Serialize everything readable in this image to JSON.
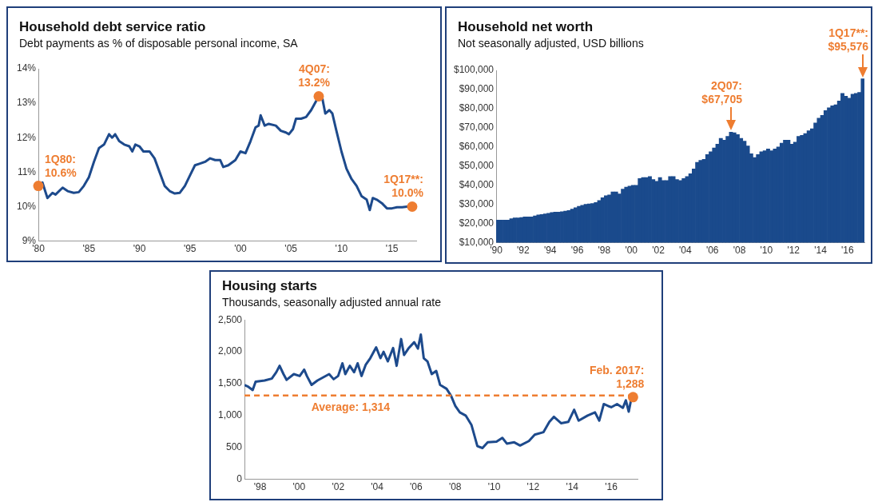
{
  "chart_data": [
    {
      "type": "line",
      "title": "Household debt service ratio",
      "subtitle": "Debt payments as % of disposable personal income, SA",
      "color": "#1d4a8c",
      "x": [
        1980.0,
        1980.4,
        1980.9,
        1981.4,
        1981.7,
        1982.4,
        1982.9,
        1983.5,
        1984.0,
        1984.5,
        1985.0,
        1985.5,
        1986.0,
        1986.5,
        1987.0,
        1987.3,
        1987.6,
        1988.0,
        1988.5,
        1989.0,
        1989.3,
        1989.6,
        1990.0,
        1990.4,
        1991.0,
        1991.5,
        1992.0,
        1992.5,
        1993.0,
        1993.5,
        1994.0,
        1994.5,
        1995.0,
        1995.5,
        1996.0,
        1996.5,
        1997.0,
        1997.5,
        1998.0,
        1998.3,
        1998.8,
        1999.5,
        2000.0,
        2000.5,
        2001.0,
        2001.5,
        2001.8,
        2002.0,
        2002.4,
        2002.8,
        2003.5,
        2004.0,
        2004.5,
        2004.8,
        2005.2,
        2005.5,
        2006.0,
        2006.5,
        2007.0,
        2007.75,
        2008.1,
        2008.4,
        2008.8,
        2009.1,
        2009.5,
        2010.0,
        2010.5,
        2011.0,
        2011.5,
        2012.0,
        2012.5,
        2012.8,
        2013.1,
        2013.5,
        2014.0,
        2014.5,
        2015.0,
        2015.5,
        2016.0,
        2016.5,
        2017.0
      ],
      "values": [
        10.6,
        10.7,
        10.25,
        10.4,
        10.35,
        10.55,
        10.45,
        10.4,
        10.42,
        10.6,
        10.85,
        11.3,
        11.7,
        11.8,
        12.1,
        12.0,
        12.1,
        11.9,
        11.8,
        11.75,
        11.6,
        11.8,
        11.75,
        11.6,
        11.6,
        11.4,
        11.0,
        10.6,
        10.45,
        10.38,
        10.4,
        10.6,
        10.9,
        11.2,
        11.25,
        11.3,
        11.4,
        11.35,
        11.35,
        11.15,
        11.2,
        11.35,
        11.6,
        11.55,
        11.9,
        12.3,
        12.35,
        12.65,
        12.35,
        12.4,
        12.35,
        12.2,
        12.15,
        12.1,
        12.25,
        12.55,
        12.55,
        12.6,
        12.8,
        13.2,
        13.15,
        12.7,
        12.8,
        12.7,
        12.2,
        11.6,
        11.1,
        10.8,
        10.6,
        10.3,
        10.2,
        9.9,
        10.25,
        10.2,
        10.1,
        9.95,
        9.95,
        9.98,
        9.98,
        10.0,
        10.0
      ],
      "xlim": [
        1980,
        2017.4
      ],
      "xticks": [
        {
          "value": 1980,
          "label": "'80"
        },
        {
          "value": 1985,
          "label": "'85"
        },
        {
          "value": 1990,
          "label": "'90"
        },
        {
          "value": 1995,
          "label": "'95"
        },
        {
          "value": 2000,
          "label": "'00"
        },
        {
          "value": 2005,
          "label": "'05"
        },
        {
          "value": 2010,
          "label": "'10"
        },
        {
          "value": 2015,
          "label": "'15"
        }
      ],
      "ylim": [
        9,
        14
      ],
      "yticks": [
        {
          "value": 9,
          "label": "9%"
        },
        {
          "value": 10,
          "label": "10%"
        },
        {
          "value": 11,
          "label": "11%"
        },
        {
          "value": 12,
          "label": "12%"
        },
        {
          "value": 13,
          "label": "13%"
        },
        {
          "value": 14,
          "label": "14%"
        }
      ],
      "annotations": [
        {
          "text": "1Q80: 10.6%",
          "x": 1980.0,
          "y": 10.6
        },
        {
          "text": "4Q07: 13.2%",
          "x": 2007.75,
          "y": 13.2
        },
        {
          "text": "1Q17**: 10.0%",
          "x": 2017.0,
          "y": 10.0
        }
      ]
    },
    {
      "type": "bar",
      "title": "Household net worth",
      "subtitle": "Not seasonally adjusted, USD billions",
      "color": "#1a4a8c",
      "x": [
        1990.125,
        1990.375,
        1990.625,
        1990.875,
        1991.125,
        1991.375,
        1991.625,
        1991.875,
        1992.125,
        1992.375,
        1992.625,
        1992.875,
        1993.125,
        1993.375,
        1993.625,
        1993.875,
        1994.125,
        1994.375,
        1994.625,
        1994.875,
        1995.125,
        1995.375,
        1995.625,
        1995.875,
        1996.125,
        1996.375,
        1996.625,
        1996.875,
        1997.125,
        1997.375,
        1997.625,
        1997.875,
        1998.125,
        1998.375,
        1998.625,
        1998.875,
        1999.125,
        1999.375,
        1999.625,
        1999.875,
        2000.125,
        2000.375,
        2000.625,
        2000.875,
        2001.125,
        2001.375,
        2001.625,
        2001.875,
        2002.125,
        2002.375,
        2002.625,
        2002.875,
        2003.125,
        2003.375,
        2003.625,
        2003.875,
        2004.125,
        2004.375,
        2004.625,
        2004.875,
        2005.125,
        2005.375,
        2005.625,
        2005.875,
        2006.125,
        2006.375,
        2006.625,
        2006.875,
        2007.125,
        2007.375,
        2007.625,
        2007.875,
        2008.125,
        2008.375,
        2008.625,
        2008.875,
        2009.125,
        2009.375,
        2009.625,
        2009.875,
        2010.125,
        2010.375,
        2010.625,
        2010.875,
        2011.125,
        2011.375,
        2011.625,
        2011.875,
        2012.125,
        2012.375,
        2012.625,
        2012.875,
        2013.125,
        2013.375,
        2013.625,
        2013.875,
        2014.125,
        2014.375,
        2014.625,
        2014.875,
        2015.125,
        2015.375,
        2015.625,
        2015.875,
        2016.125,
        2016.375,
        2016.625,
        2016.875,
        2017.125
      ],
      "values": [
        21800,
        21800,
        21800,
        21800,
        22500,
        23000,
        23000,
        23200,
        23500,
        23500,
        23500,
        24000,
        24500,
        24700,
        25000,
        25300,
        25800,
        26000,
        26000,
        26200,
        26500,
        26800,
        27500,
        28300,
        29000,
        29500,
        30000,
        30300,
        30500,
        31000,
        32000,
        33500,
        34500,
        35000,
        36500,
        36500,
        35500,
        38000,
        39000,
        39500,
        40000,
        40000,
        43500,
        44000,
        44000,
        44500,
        43000,
        42000,
        44000,
        42500,
        42500,
        44500,
        44500,
        43000,
        42500,
        43500,
        44500,
        46000,
        48500,
        52000,
        53000,
        53500,
        56000,
        57500,
        59500,
        61500,
        64500,
        63500,
        65500,
        67705,
        67400,
        66500,
        64500,
        63000,
        60500,
        56500,
        54500,
        56000,
        57500,
        58000,
        59000,
        58000,
        59000,
        60000,
        62000,
        63500,
        63500,
        61500,
        62500,
        65500,
        66000,
        67000,
        68500,
        69500,
        72500,
        75000,
        76500,
        79000,
        80500,
        81500,
        82000,
        84000,
        88000,
        86500,
        85500,
        87500,
        88000,
        88500,
        95576
      ],
      "xlim": [
        1990,
        2017.25
      ],
      "xticks": [
        {
          "value": 1990,
          "label": "'90"
        },
        {
          "value": 1992,
          "label": "'92"
        },
        {
          "value": 1994,
          "label": "'94"
        },
        {
          "value": 1996,
          "label": "'96"
        },
        {
          "value": 1998,
          "label": "'98"
        },
        {
          "value": 2000,
          "label": "'00"
        },
        {
          "value": 2002,
          "label": "'02"
        },
        {
          "value": 2004,
          "label": "'04"
        },
        {
          "value": 2006,
          "label": "'06"
        },
        {
          "value": 2008,
          "label": "'08"
        },
        {
          "value": 2010,
          "label": "'10"
        },
        {
          "value": 2012,
          "label": "'12"
        },
        {
          "value": 2014,
          "label": "'14"
        },
        {
          "value": 2016,
          "label": "'16"
        }
      ],
      "ylim": [
        10000,
        100000
      ],
      "yticks": [
        {
          "value": 10000,
          "label": "$10,000"
        },
        {
          "value": 20000,
          "label": "$20,000"
        },
        {
          "value": 30000,
          "label": "$30,000"
        },
        {
          "value": 40000,
          "label": "$40,000"
        },
        {
          "value": 50000,
          "label": "$50,000"
        },
        {
          "value": 60000,
          "label": "$60,000"
        },
        {
          "value": 70000,
          "label": "$70,000"
        },
        {
          "value": 80000,
          "label": "$80,000"
        },
        {
          "value": 90000,
          "label": "$90,000"
        },
        {
          "value": 100000,
          "label": "$100,000"
        }
      ],
      "annotations": [
        {
          "text": "2Q07: $67,705",
          "x": 2007.375,
          "y": 67705
        },
        {
          "text": "1Q17**: $95,576",
          "x": 2017.125,
          "y": 95576
        }
      ]
    },
    {
      "type": "line",
      "title": "Housing starts",
      "subtitle": "Thousands, seasonally adjusted annual rate",
      "color": "#1d4a8c",
      "x": [
        1997.2,
        1997.4,
        1997.62,
        1997.77,
        1998.23,
        1998.6,
        1998.83,
        1999.0,
        1999.2,
        1999.36,
        1999.73,
        2000.03,
        2000.26,
        2000.4,
        2000.64,
        2000.94,
        2001.24,
        2001.54,
        2001.77,
        2002.0,
        2002.22,
        2002.37,
        2002.6,
        2002.82,
        2003.0,
        2003.2,
        2003.42,
        2003.65,
        2003.95,
        2004.17,
        2004.33,
        2004.55,
        2004.82,
        2005.0,
        2005.23,
        2005.38,
        2005.6,
        2005.9,
        2006.09,
        2006.24,
        2006.39,
        2006.58,
        2006.8,
        2007.03,
        2007.23,
        2007.56,
        2007.79,
        2008.01,
        2008.24,
        2008.54,
        2008.84,
        2009.14,
        2009.4,
        2009.67,
        2010.12,
        2010.42,
        2010.65,
        2011.03,
        2011.33,
        2011.78,
        2012.08,
        2012.53,
        2012.83,
        2013.06,
        2013.43,
        2013.8,
        2014.1,
        2014.33,
        2014.79,
        2015.17,
        2015.39,
        2015.62,
        2016.0,
        2016.3,
        2016.6,
        2016.75,
        2016.9,
        2017.04,
        2017.12
      ],
      "values": [
        1480,
        1450,
        1400,
        1530,
        1550,
        1580,
        1680,
        1780,
        1650,
        1560,
        1650,
        1620,
        1720,
        1620,
        1480,
        1550,
        1600,
        1650,
        1570,
        1620,
        1820,
        1650,
        1780,
        1680,
        1820,
        1620,
        1800,
        1900,
        2070,
        1900,
        2000,
        1850,
        2060,
        1780,
        2200,
        1950,
        2050,
        2150,
        2050,
        2270,
        1900,
        1850,
        1650,
        1700,
        1480,
        1420,
        1310,
        1150,
        1050,
        1000,
        850,
        520,
        490,
        580,
        590,
        650,
        560,
        580,
        530,
        600,
        700,
        740,
        900,
        980,
        880,
        900,
        1090,
        920,
        1000,
        1050,
        920,
        1180,
        1130,
        1180,
        1120,
        1240,
        1060,
        1280,
        1288
      ],
      "xlim": [
        1997.2,
        2017.35
      ],
      "xticks": [
        {
          "value": 1998,
          "label": "'98"
        },
        {
          "value": 2000,
          "label": "'00"
        },
        {
          "value": 2002,
          "label": "'02"
        },
        {
          "value": 2004,
          "label": "'04"
        },
        {
          "value": 2006,
          "label": "'06"
        },
        {
          "value": 2008,
          "label": "'08"
        },
        {
          "value": 2010,
          "label": "'10"
        },
        {
          "value": 2012,
          "label": "'12"
        },
        {
          "value": 2014,
          "label": "'14"
        },
        {
          "value": 2016,
          "label": "'16"
        }
      ],
      "ylim": [
        0,
        2500
      ],
      "yticks": [
        0,
        500,
        {
          "value": 1000,
          "label": "1,000"
        },
        {
          "value": 1500,
          "label": "1,500"
        },
        {
          "value": 2000,
          "label": "2,000"
        },
        {
          "value": 2500,
          "label": "2,500"
        }
      ],
      "ref_lines": [
        {
          "axis": "y",
          "value": 1314,
          "label": "Average: 1,314",
          "color": "#ee7d31",
          "line_style": "dashed"
        }
      ],
      "annotations": [
        {
          "text": "Feb. 2017: 1,288",
          "x": 2017.12,
          "y": 1288
        }
      ]
    }
  ]
}
